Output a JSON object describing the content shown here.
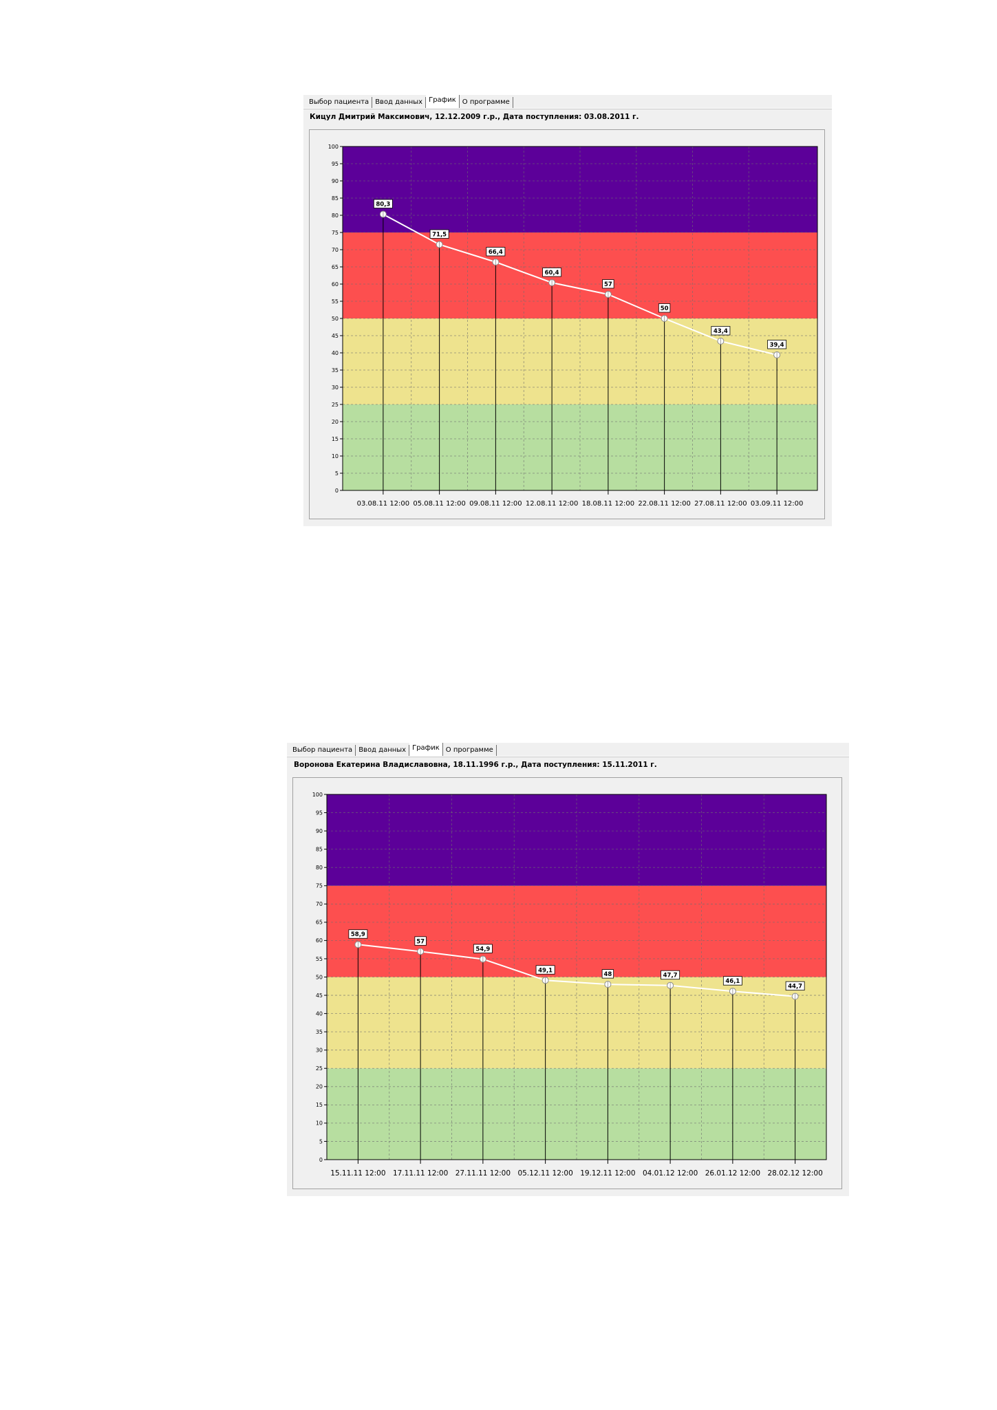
{
  "tabs": [
    "Выбор пациента",
    "Ввод данных",
    "График",
    "О программе"
  ],
  "active_tab": 2,
  "panels": [
    {
      "header": "Кицул Дмитрий Максимович, 12.12.2009 г.р., Дата поступления: 03.08.2011 г.",
      "chart_data": {
        "type": "line",
        "x_labels": [
          "03.08.11 12:00",
          "05.08.11 12:00",
          "09.08.11 12:00",
          "12.08.11 12:00",
          "18.08.11 12:00",
          "22.08.11 12:00",
          "27.08.11 12:00",
          "03.09.11 12:00"
        ],
        "values": [
          80.3,
          71.5,
          66.4,
          60.4,
          57,
          50,
          43.4,
          39.4
        ],
        "data_labels": [
          "80,3",
          "71,5",
          "66,4",
          "60,4",
          "57",
          "50",
          "43,4",
          "39,4"
        ],
        "ylim": [
          0,
          100
        ],
        "y_ticks": [
          0,
          5,
          10,
          15,
          20,
          25,
          30,
          35,
          40,
          45,
          50,
          55,
          60,
          65,
          70,
          75,
          80,
          85,
          90,
          95,
          100
        ],
        "bands": [
          {
            "from": 0,
            "to": 25,
            "color": "#b7dea0"
          },
          {
            "from": 25,
            "to": 50,
            "color": "#eee38e"
          },
          {
            "from": 50,
            "to": 75,
            "color": "#fd4f4f"
          },
          {
            "from": 75,
            "to": 100,
            "color": "#5c0099"
          }
        ],
        "line_color": "#ffffff",
        "grid": true
      }
    },
    {
      "header": "Воронова  Екатерина Владиславовна, 18.11.1996 г.р., Дата поступления: 15.11.2011 г.",
      "chart_data": {
        "type": "line",
        "x_labels": [
          "15.11.11 12:00",
          "17.11.11 12:00",
          "27.11.11 12:00",
          "05.12.11 12:00",
          "19.12.11 12:00",
          "04.01.12 12:00",
          "26.01.12 12:00",
          "28.02.12 12:00"
        ],
        "values": [
          58.9,
          57,
          54.9,
          49.1,
          48,
          47.7,
          46.1,
          44.7
        ],
        "data_labels": [
          "58,9",
          "57",
          "54,9",
          "49,1",
          "48",
          "47,7",
          "46,1",
          "44,7"
        ],
        "ylim": [
          0,
          100
        ],
        "y_ticks": [
          0,
          5,
          10,
          15,
          20,
          25,
          30,
          35,
          40,
          45,
          50,
          55,
          60,
          65,
          70,
          75,
          80,
          85,
          90,
          95,
          100
        ],
        "bands": [
          {
            "from": 0,
            "to": 25,
            "color": "#b7dea0"
          },
          {
            "from": 25,
            "to": 50,
            "color": "#eee38e"
          },
          {
            "from": 50,
            "to": 75,
            "color": "#fd4f4f"
          },
          {
            "from": 75,
            "to": 100,
            "color": "#5c0099"
          }
        ],
        "line_color": "#ffffff",
        "grid": true
      }
    }
  ]
}
